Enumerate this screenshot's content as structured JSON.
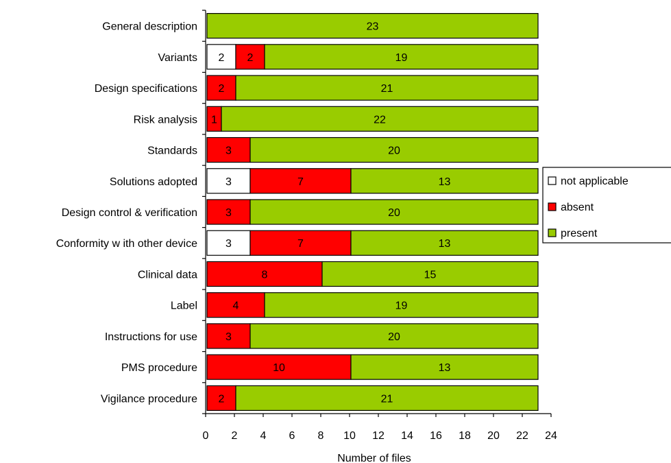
{
  "chart_data": {
    "type": "bar",
    "orientation": "horizontal",
    "stacked": true,
    "title": "",
    "xlabel": "Number of files",
    "ylabel": "",
    "xlim": [
      0,
      24
    ],
    "xticks": [
      0,
      2,
      4,
      6,
      8,
      10,
      12,
      14,
      16,
      18,
      20,
      22,
      24
    ],
    "grid": false,
    "legend_position": "right",
    "categories": [
      "General description",
      "Variants",
      "Design specifications",
      "Risk analysis",
      "Standards",
      "Solutions adopted",
      "Design control & verification",
      "Conformity w ith other device",
      "Clinical data",
      "Label",
      "Instructions for use",
      "PMS procedure",
      "Vigilance procedure"
    ],
    "series": [
      {
        "name": "not applicable",
        "color": "#ffffff",
        "values": [
          0,
          2,
          0,
          0,
          0,
          3,
          0,
          3,
          0,
          0,
          0,
          0,
          0
        ]
      },
      {
        "name": "absent",
        "color": "#ff0000",
        "values": [
          0,
          2,
          2,
          1,
          3,
          7,
          3,
          7,
          8,
          4,
          3,
          10,
          2
        ]
      },
      {
        "name": "present",
        "color": "#99cc00",
        "values": [
          23,
          19,
          21,
          22,
          20,
          13,
          20,
          13,
          15,
          19,
          20,
          13,
          21
        ]
      }
    ]
  }
}
